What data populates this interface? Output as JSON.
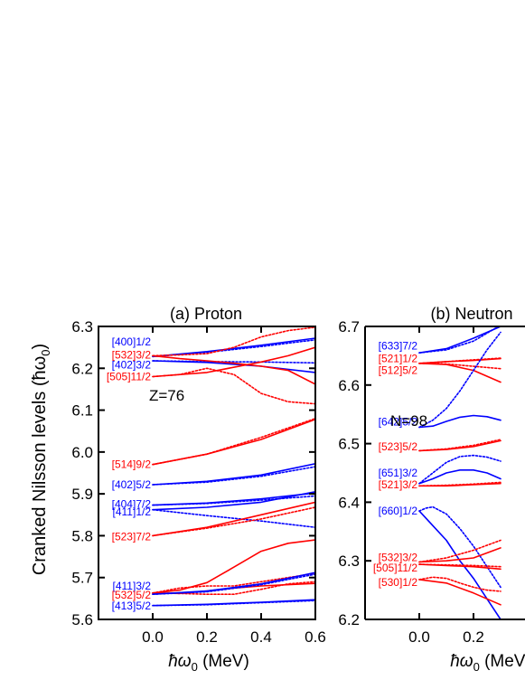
{
  "y_axis_label": "Cranked Nilsson levels (ħω",
  "y_axis_sub": "0",
  "y_axis_close": ")",
  "chart_data": [
    {
      "type": "line",
      "title": "(a) Proton",
      "xlabel": "ħω",
      "xlabel_sub": "0",
      "xlabel_unit": " (MeV)",
      "xlim": [
        -0.2,
        0.6
      ],
      "ylim": [
        5.6,
        6.3
      ],
      "xticks": [
        "0.0",
        "0.2",
        "0.4",
        "0.6"
      ],
      "xtick_values": [
        0.0,
        0.2,
        0.4,
        0.6
      ],
      "yticks": [
        "5.6",
        "5.7",
        "5.8",
        "5.9",
        "6.0",
        "6.1",
        "6.2",
        "6.3"
      ],
      "ytick_values": [
        5.6,
        5.7,
        5.8,
        5.9,
        6.0,
        6.1,
        6.2,
        6.3
      ],
      "annotation": "Z=76",
      "colors": {
        "positive_parity": "#0000ff",
        "negative_parity": "#ff0000"
      },
      "level_labels": [
        {
          "text": "[400]1/2",
          "y": 6.263,
          "color": "#0000ff"
        },
        {
          "text": "[532]3/2",
          "y": 6.232,
          "color": "#ff0000"
        },
        {
          "text": "[402]3/2",
          "y": 6.208,
          "color": "#0000ff"
        },
        {
          "text": "[505]11/2",
          "y": 6.18,
          "color": "#ff0000"
        },
        {
          "text": "[514]9/2",
          "y": 5.97,
          "color": "#ff0000"
        },
        {
          "text": "[402]5/2",
          "y": 5.922,
          "color": "#0000ff"
        },
        {
          "text": "[404]7/2",
          "y": 5.875,
          "color": "#0000ff"
        },
        {
          "text": "[411]1/2",
          "y": 5.857,
          "color": "#0000ff"
        },
        {
          "text": "[523]7/2",
          "y": 5.798,
          "color": "#ff0000"
        },
        {
          "text": "[411]3/2",
          "y": 5.68,
          "color": "#0000ff"
        },
        {
          "text": "[532]5/2",
          "y": 5.658,
          "color": "#ff0000"
        },
        {
          "text": "[413]5/2",
          "y": 5.632,
          "color": "#0000ff"
        }
      ],
      "series": [
        {
          "color": "#0000ff",
          "dashed": false,
          "x": [
            0.0,
            0.2,
            0.4,
            0.6
          ],
          "y": [
            6.228,
            6.24,
            6.255,
            6.272
          ]
        },
        {
          "color": "#0000ff",
          "dashed": true,
          "x": [
            0.0,
            0.2,
            0.4,
            0.6
          ],
          "y": [
            6.228,
            6.238,
            6.252,
            6.268
          ]
        },
        {
          "color": "#0000ff",
          "dashed": false,
          "x": [
            0.0,
            0.2,
            0.4,
            0.6
          ],
          "y": [
            6.218,
            6.214,
            6.205,
            6.19
          ]
        },
        {
          "color": "#0000ff",
          "dashed": true,
          "x": [
            0.0,
            0.2,
            0.4,
            0.6
          ],
          "y": [
            6.218,
            6.216,
            6.215,
            6.213
          ]
        },
        {
          "color": "#ff0000",
          "dashed": false,
          "x": [
            0.0,
            0.1,
            0.2,
            0.3,
            0.4,
            0.5,
            0.6
          ],
          "y": [
            6.23,
            6.223,
            6.218,
            6.212,
            6.205,
            6.195,
            6.162
          ]
        },
        {
          "color": "#ff0000",
          "dashed": true,
          "x": [
            0.0,
            0.1,
            0.2,
            0.3,
            0.4,
            0.5,
            0.6
          ],
          "y": [
            6.23,
            6.232,
            6.235,
            6.25,
            6.275,
            6.29,
            6.298
          ]
        },
        {
          "color": "#ff0000",
          "dashed": false,
          "x": [
            0.0,
            0.2,
            0.4,
            0.5,
            0.6
          ],
          "y": [
            6.18,
            6.19,
            6.215,
            6.23,
            6.25
          ]
        },
        {
          "color": "#ff0000",
          "dashed": true,
          "x": [
            0.0,
            0.1,
            0.2,
            0.3,
            0.4,
            0.5,
            0.6
          ],
          "y": [
            6.18,
            6.185,
            6.2,
            6.185,
            6.14,
            6.12,
            6.115
          ]
        },
        {
          "color": "#ff0000",
          "dashed": false,
          "x": [
            0.0,
            0.2,
            0.4,
            0.6
          ],
          "y": [
            5.97,
            5.995,
            6.03,
            6.078
          ]
        },
        {
          "color": "#ff0000",
          "dashed": true,
          "x": [
            0.0,
            0.2,
            0.4,
            0.6
          ],
          "y": [
            5.97,
            5.995,
            6.035,
            6.08
          ]
        },
        {
          "color": "#0000ff",
          "dashed": false,
          "x": [
            0.0,
            0.2,
            0.4,
            0.6
          ],
          "y": [
            5.922,
            5.93,
            5.945,
            5.972
          ]
        },
        {
          "color": "#0000ff",
          "dashed": true,
          "x": [
            0.0,
            0.2,
            0.4,
            0.6
          ],
          "y": [
            5.922,
            5.928,
            5.942,
            5.965
          ]
        },
        {
          "color": "#0000ff",
          "dashed": false,
          "x": [
            0.0,
            0.2,
            0.4,
            0.6
          ],
          "y": [
            5.873,
            5.878,
            5.888,
            5.902
          ]
        },
        {
          "color": "#0000ff",
          "dashed": true,
          "x": [
            0.0,
            0.2,
            0.4,
            0.6
          ],
          "y": [
            5.873,
            5.877,
            5.885,
            5.895
          ]
        },
        {
          "color": "#0000ff",
          "dashed": false,
          "x": [
            0.0,
            0.2,
            0.4,
            0.6
          ],
          "y": [
            5.862,
            5.868,
            5.88,
            5.905
          ]
        },
        {
          "color": "#0000ff",
          "dashed": true,
          "x": [
            0.0,
            0.2,
            0.4,
            0.6
          ],
          "y": [
            5.862,
            5.848,
            5.835,
            5.82
          ]
        },
        {
          "color": "#ff0000",
          "dashed": false,
          "x": [
            0.0,
            0.2,
            0.4,
            0.6
          ],
          "y": [
            5.8,
            5.82,
            5.85,
            5.88
          ]
        },
        {
          "color": "#ff0000",
          "dashed": true,
          "x": [
            0.0,
            0.2,
            0.4,
            0.6
          ],
          "y": [
            5.8,
            5.818,
            5.84,
            5.868
          ]
        },
        {
          "color": "#ff0000",
          "dashed": false,
          "x": [
            0.0,
            0.1,
            0.2,
            0.3,
            0.4,
            0.5,
            0.6
          ],
          "y": [
            5.663,
            5.67,
            5.688,
            5.725,
            5.763,
            5.782,
            5.79
          ]
        },
        {
          "color": "#ff0000",
          "dashed": true,
          "x": [
            0.0,
            0.1,
            0.2,
            0.3,
            0.4,
            0.5,
            0.6
          ],
          "y": [
            5.663,
            5.675,
            5.68,
            5.68,
            5.69,
            5.7,
            5.71
          ]
        },
        {
          "color": "#ff0000",
          "dashed": false,
          "x": [
            0.0,
            0.1,
            0.2,
            0.3,
            0.4,
            0.5,
            0.6
          ],
          "y": [
            5.663,
            5.662,
            5.668,
            5.675,
            5.68,
            5.683,
            5.686
          ]
        },
        {
          "color": "#ff0000",
          "dashed": true,
          "x": [
            0.0,
            0.1,
            0.2,
            0.3,
            0.4,
            0.5,
            0.6
          ],
          "y": [
            5.663,
            5.662,
            5.66,
            5.66,
            5.672,
            5.685,
            5.69
          ]
        },
        {
          "color": "#0000ff",
          "dashed": false,
          "x": [
            0.0,
            0.2,
            0.4,
            0.6
          ],
          "y": [
            5.66,
            5.668,
            5.685,
            5.712
          ]
        },
        {
          "color": "#0000ff",
          "dashed": true,
          "x": [
            0.0,
            0.2,
            0.4,
            0.6
          ],
          "y": [
            5.66,
            5.666,
            5.683,
            5.708
          ]
        },
        {
          "color": "#0000ff",
          "dashed": false,
          "x": [
            0.0,
            0.2,
            0.4,
            0.6
          ],
          "y": [
            5.633,
            5.636,
            5.641,
            5.647
          ]
        },
        {
          "color": "#0000ff",
          "dashed": true,
          "x": [
            0.0,
            0.2,
            0.4,
            0.6
          ],
          "y": [
            5.633,
            5.635,
            5.64,
            5.645
          ]
        }
      ]
    },
    {
      "type": "line",
      "title": "(b) Neutron",
      "xlabel": "ħω",
      "xlabel_sub": "0",
      "xlabel_unit": " (MeV)",
      "xlim": [
        -0.2,
        0.3
      ],
      "ylim": [
        6.2,
        6.7
      ],
      "xticks": [
        "0.0",
        "0.2"
      ],
      "xtick_values": [
        0.0,
        0.2
      ],
      "yticks": [
        "6.2",
        "6.3",
        "6.4",
        "6.5",
        "6.6",
        "6.7"
      ],
      "ytick_values": [
        6.2,
        6.3,
        6.4,
        6.5,
        6.6,
        6.7
      ],
      "annotation": "N=98",
      "colors": {
        "positive_parity": "#0000ff",
        "negative_parity": "#ff0000"
      },
      "level_labels": [
        {
          "text": "[633]7/2",
          "y": 6.667,
          "color": "#0000ff"
        },
        {
          "text": "[521]1/2",
          "y": 6.645,
          "color": "#ff0000"
        },
        {
          "text": "[512]5/2",
          "y": 6.625,
          "color": "#ff0000"
        },
        {
          "text": "[642]5/2",
          "y": 6.537,
          "color": "#0000ff"
        },
        {
          "text": "[523]5/2",
          "y": 6.495,
          "color": "#ff0000"
        },
        {
          "text": "[651]3/2",
          "y": 6.45,
          "color": "#0000ff"
        },
        {
          "text": "[521]3/2",
          "y": 6.43,
          "color": "#ff0000"
        },
        {
          "text": "[660]1/2",
          "y": 6.385,
          "color": "#0000ff"
        },
        {
          "text": "[532]3/2",
          "y": 6.306,
          "color": "#ff0000"
        },
        {
          "text": "[505]11/2",
          "y": 6.288,
          "color": "#ff0000"
        },
        {
          "text": "[530]1/2",
          "y": 6.263,
          "color": "#ff0000"
        }
      ],
      "series": [
        {
          "color": "#0000ff",
          "dashed": false,
          "x": [
            0.0,
            0.1,
            0.2,
            0.3
          ],
          "y": [
            6.655,
            6.662,
            6.68,
            6.7
          ]
        },
        {
          "color": "#0000ff",
          "dashed": true,
          "x": [
            0.0,
            0.1,
            0.2,
            0.3
          ],
          "y": [
            6.655,
            6.66,
            6.675,
            6.702
          ]
        },
        {
          "color": "#ff0000",
          "dashed": false,
          "x": [
            0.0,
            0.1,
            0.2,
            0.3
          ],
          "y": [
            6.637,
            6.64,
            6.642,
            6.645
          ]
        },
        {
          "color": "#ff0000",
          "dashed": true,
          "x": [
            0.0,
            0.1,
            0.2,
            0.3
          ],
          "y": [
            6.637,
            6.64,
            6.643,
            6.646
          ]
        },
        {
          "color": "#ff0000",
          "dashed": false,
          "x": [
            0.0,
            0.1,
            0.2,
            0.3
          ],
          "y": [
            6.637,
            6.635,
            6.625,
            6.605
          ]
        },
        {
          "color": "#ff0000",
          "dashed": true,
          "x": [
            0.0,
            0.1,
            0.2,
            0.3
          ],
          "y": [
            6.637,
            6.636,
            6.632,
            6.628
          ]
        },
        {
          "color": "#0000ff",
          "dashed": false,
          "x": [
            0.0,
            0.05,
            0.1,
            0.15,
            0.2,
            0.25,
            0.3
          ],
          "y": [
            6.528,
            6.53,
            6.538,
            6.545,
            6.548,
            6.546,
            6.54
          ]
        },
        {
          "color": "#0000ff",
          "dashed": true,
          "x": [
            0.0,
            0.05,
            0.1,
            0.15,
            0.2,
            0.25,
            0.3
          ],
          "y": [
            6.528,
            6.54,
            6.56,
            6.59,
            6.625,
            6.66,
            6.69
          ]
        },
        {
          "color": "#ff0000",
          "dashed": false,
          "x": [
            0.0,
            0.1,
            0.2,
            0.3
          ],
          "y": [
            6.488,
            6.49,
            6.495,
            6.505
          ]
        },
        {
          "color": "#ff0000",
          "dashed": true,
          "x": [
            0.0,
            0.1,
            0.2,
            0.3
          ],
          "y": [
            6.488,
            6.491,
            6.497,
            6.507
          ]
        },
        {
          "color": "#0000ff",
          "dashed": false,
          "x": [
            0.0,
            0.05,
            0.1,
            0.15,
            0.2,
            0.25,
            0.3
          ],
          "y": [
            6.432,
            6.44,
            6.45,
            6.455,
            6.455,
            6.45,
            6.44
          ]
        },
        {
          "color": "#0000ff",
          "dashed": true,
          "x": [
            0.0,
            0.05,
            0.1,
            0.15,
            0.2,
            0.25,
            0.3
          ],
          "y": [
            6.432,
            6.45,
            6.468,
            6.478,
            6.48,
            6.477,
            6.47
          ]
        },
        {
          "color": "#ff0000",
          "dashed": false,
          "x": [
            0.0,
            0.1,
            0.2,
            0.3
          ],
          "y": [
            6.428,
            6.428,
            6.43,
            6.432
          ]
        },
        {
          "color": "#ff0000",
          "dashed": true,
          "x": [
            0.0,
            0.1,
            0.2,
            0.3
          ],
          "y": [
            6.428,
            6.429,
            6.431,
            6.434
          ]
        },
        {
          "color": "#0000ff",
          "dashed": false,
          "x": [
            0.0,
            0.05,
            0.1,
            0.15,
            0.2,
            0.25,
            0.3
          ],
          "y": [
            6.385,
            6.36,
            6.335,
            6.3,
            6.27,
            6.235,
            6.2
          ]
        },
        {
          "color": "#0000ff",
          "dashed": true,
          "x": [
            0.0,
            0.025,
            0.05,
            0.1,
            0.15,
            0.2,
            0.25,
            0.3
          ],
          "y": [
            6.385,
            6.39,
            6.392,
            6.38,
            6.355,
            6.325,
            6.29,
            6.255
          ]
        },
        {
          "color": "#ff0000",
          "dashed": false,
          "x": [
            0.0,
            0.1,
            0.2,
            0.3
          ],
          "y": [
            6.298,
            6.3,
            6.305,
            6.322
          ]
        },
        {
          "color": "#ff0000",
          "dashed": true,
          "x": [
            0.0,
            0.1,
            0.2,
            0.3
          ],
          "y": [
            6.298,
            6.305,
            6.318,
            6.335
          ]
        },
        {
          "color": "#ff0000",
          "dashed": false,
          "x": [
            0.0,
            0.1,
            0.2,
            0.3
          ],
          "y": [
            6.294,
            6.292,
            6.29,
            6.286
          ]
        },
        {
          "color": "#ff0000",
          "dashed": true,
          "x": [
            0.0,
            0.1,
            0.2,
            0.3
          ],
          "y": [
            6.294,
            6.293,
            6.292,
            6.29
          ]
        },
        {
          "color": "#ff0000",
          "dashed": false,
          "x": [
            0.0,
            0.1,
            0.2,
            0.3
          ],
          "y": [
            6.268,
            6.262,
            6.245,
            6.225
          ]
        },
        {
          "color": "#ff0000",
          "dashed": true,
          "x": [
            0.0,
            0.05,
            0.1,
            0.15,
            0.2,
            0.25,
            0.3
          ],
          "y": [
            6.268,
            6.272,
            6.27,
            6.262,
            6.255,
            6.25,
            6.248
          ]
        }
      ]
    }
  ]
}
